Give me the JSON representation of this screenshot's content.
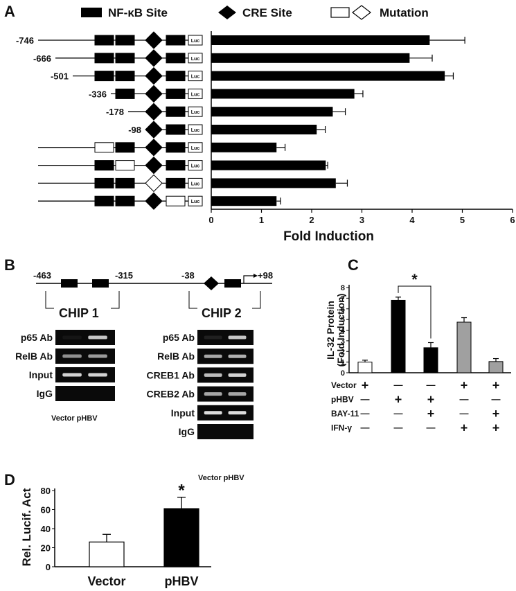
{
  "panel_letters": {
    "a": "A",
    "b": "B",
    "c": "C",
    "d": "D"
  },
  "legend": {
    "nfkb": "NF-κB Site",
    "cre": "CRE Site",
    "mutation": "Mutation",
    "luc": "Luc"
  },
  "colors": {
    "bar_black": "#000000",
    "bar_gray": "#a0a0a0",
    "bar_white": "#ffffff",
    "gel_bg": "#0a0a0a",
    "band": "#e8e8e8"
  },
  "chart_data": [
    {
      "panel": "A",
      "type": "bar",
      "orientation": "horizontal",
      "xlabel": "Fold Induction",
      "xlim": [
        0,
        6
      ],
      "xticks": [
        "0",
        "1",
        "2",
        "3",
        "4",
        "5",
        "6"
      ],
      "constructs": [
        {
          "label": "-746",
          "value": 4.35,
          "error": 0.7,
          "nf1": "wt",
          "nf2": "wt",
          "cre": "wt",
          "nf3": "wt",
          "start": "-746"
        },
        {
          "label": "-666",
          "value": 3.95,
          "error": 0.45,
          "nf1": "wt",
          "nf2": "wt",
          "cre": "wt",
          "nf3": "wt",
          "start": "-666"
        },
        {
          "label": "-501",
          "value": 4.65,
          "error": 0.17,
          "nf1": "wt",
          "nf2": "wt",
          "cre": "wt",
          "nf3": "wt",
          "start": "-501"
        },
        {
          "label": "-336",
          "value": 2.85,
          "error": 0.17,
          "nf1": "none",
          "nf2": "wt",
          "cre": "wt",
          "nf3": "wt",
          "start": "-336"
        },
        {
          "label": "-178",
          "value": 2.42,
          "error": 0.25,
          "nf1": "none",
          "nf2": "none",
          "cre": "wt",
          "nf3": "wt",
          "start": "-178"
        },
        {
          "label": "-98",
          "value": 2.1,
          "error": 0.17,
          "nf1": "none",
          "nf2": "none",
          "cre": "wt",
          "nf3": "wt",
          "start": "-98"
        },
        {
          "label": "",
          "value": 1.3,
          "error": 0.17,
          "nf1": "mut",
          "nf2": "wt",
          "cre": "wt",
          "nf3": "wt",
          "start": ""
        },
        {
          "label": "",
          "value": 2.28,
          "error": 0.04,
          "nf1": "wt",
          "nf2": "mut",
          "cre": "wt",
          "nf3": "wt",
          "start": ""
        },
        {
          "label": "",
          "value": 2.48,
          "error": 0.23,
          "nf1": "wt",
          "nf2": "wt",
          "cre": "mut",
          "nf3": "wt",
          "start": ""
        },
        {
          "label": "",
          "value": 1.3,
          "error": 0.08,
          "nf1": "wt",
          "nf2": "wt",
          "cre": "wt",
          "nf3": "mut",
          "start": ""
        }
      ]
    },
    {
      "panel": "C",
      "type": "bar",
      "ylabel": "IL-32 Protein",
      "ylabel2": "(Fold Induction)",
      "ylim": [
        0,
        8
      ],
      "yticks": [
        "0",
        "1",
        "2",
        "3",
        "4",
        "5",
        "6",
        "7",
        "8"
      ],
      "values": [
        1.0,
        6.8,
        2.35,
        4.75,
        1.05
      ],
      "errors": [
        0.18,
        0.3,
        0.48,
        0.42,
        0.28
      ],
      "fills": [
        "white",
        "black",
        "black",
        "gray",
        "gray"
      ],
      "significance": "*",
      "conditions": [
        {
          "name": "Vector",
          "marks": [
            "+",
            "—",
            "—",
            "+",
            "+"
          ]
        },
        {
          "name": "pHBV",
          "marks": [
            "—",
            "+",
            "+",
            "—",
            "—"
          ]
        },
        {
          "name": "BAY-11",
          "marks": [
            "—",
            "—",
            "+",
            "—",
            "+"
          ]
        },
        {
          "name": "IFN-γ",
          "marks": [
            "—",
            "—",
            "—",
            "+",
            "+"
          ]
        }
      ]
    },
    {
      "panel": "D",
      "type": "bar",
      "ylabel": "Rel. Lucif. Act",
      "ylim": [
        0,
        80
      ],
      "yticks": [
        "0",
        "20",
        "40",
        "60",
        "80"
      ],
      "categories": [
        "Vector",
        "pHBV"
      ],
      "values": [
        26,
        61
      ],
      "errors": [
        8,
        12
      ],
      "fills": [
        "white",
        "black"
      ],
      "significance": "*"
    }
  ],
  "panel_b": {
    "coords": {
      "p463": "-463",
      "p315": "-315",
      "p38": "-38",
      "p98": "+98"
    },
    "chip1": {
      "title": "CHIP 1",
      "lanes": "Vector pHBV",
      "rows": [
        {
          "label": "p65 Ab",
          "bands": [
            0.05,
            0.85
          ]
        },
        {
          "label": "RelB Ab",
          "bands": [
            0.6,
            0.65
          ]
        },
        {
          "label": "Input",
          "bands": [
            0.9,
            0.9
          ]
        },
        {
          "label": "IgG",
          "bands": [
            0,
            0
          ]
        }
      ]
    },
    "chip2": {
      "title": "CHIP 2",
      "lanes": "Vector pHBV",
      "rows": [
        {
          "label": "p65 Ab",
          "bands": [
            0.1,
            0.85
          ]
        },
        {
          "label": "RelB Ab",
          "bands": [
            0.7,
            0.75
          ]
        },
        {
          "label": "CREB1 Ab",
          "bands": [
            0.8,
            0.9
          ]
        },
        {
          "label": "CREB2 Ab",
          "bands": [
            0.7,
            0.7
          ]
        },
        {
          "label": "Input",
          "bands": [
            0.95,
            0.95
          ]
        },
        {
          "label": "IgG",
          "bands": [
            0,
            0
          ]
        }
      ]
    }
  }
}
